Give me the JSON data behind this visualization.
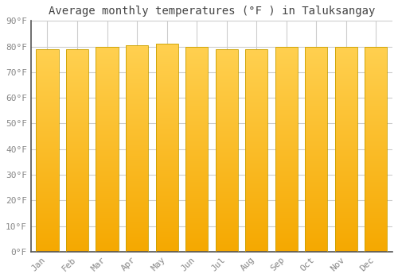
{
  "title": "Average monthly temperatures (°F ) in Taluksangay",
  "months": [
    "Jan",
    "Feb",
    "Mar",
    "Apr",
    "May",
    "Jun",
    "Jul",
    "Aug",
    "Sep",
    "Oct",
    "Nov",
    "Dec"
  ],
  "values": [
    79,
    79,
    80,
    80.5,
    81,
    80,
    79,
    79,
    80,
    80,
    80,
    80
  ],
  "ylim": [
    0,
    90
  ],
  "yticks": [
    0,
    10,
    20,
    30,
    40,
    50,
    60,
    70,
    80,
    90
  ],
  "ytick_labels": [
    "0°F",
    "10°F",
    "20°F",
    "30°F",
    "40°F",
    "50°F",
    "60°F",
    "70°F",
    "80°F",
    "90°F"
  ],
  "bar_color_top": "#FFD050",
  "bar_color_bottom": "#F5A800",
  "bar_edge_color": "#C8A000",
  "background_color": "#FFFFFF",
  "plot_bg_color": "#FFFFFF",
  "grid_color": "#CCCCCC",
  "title_fontsize": 10,
  "tick_fontsize": 8,
  "bar_width": 0.75,
  "title_color": "#444444",
  "tick_color": "#888888"
}
